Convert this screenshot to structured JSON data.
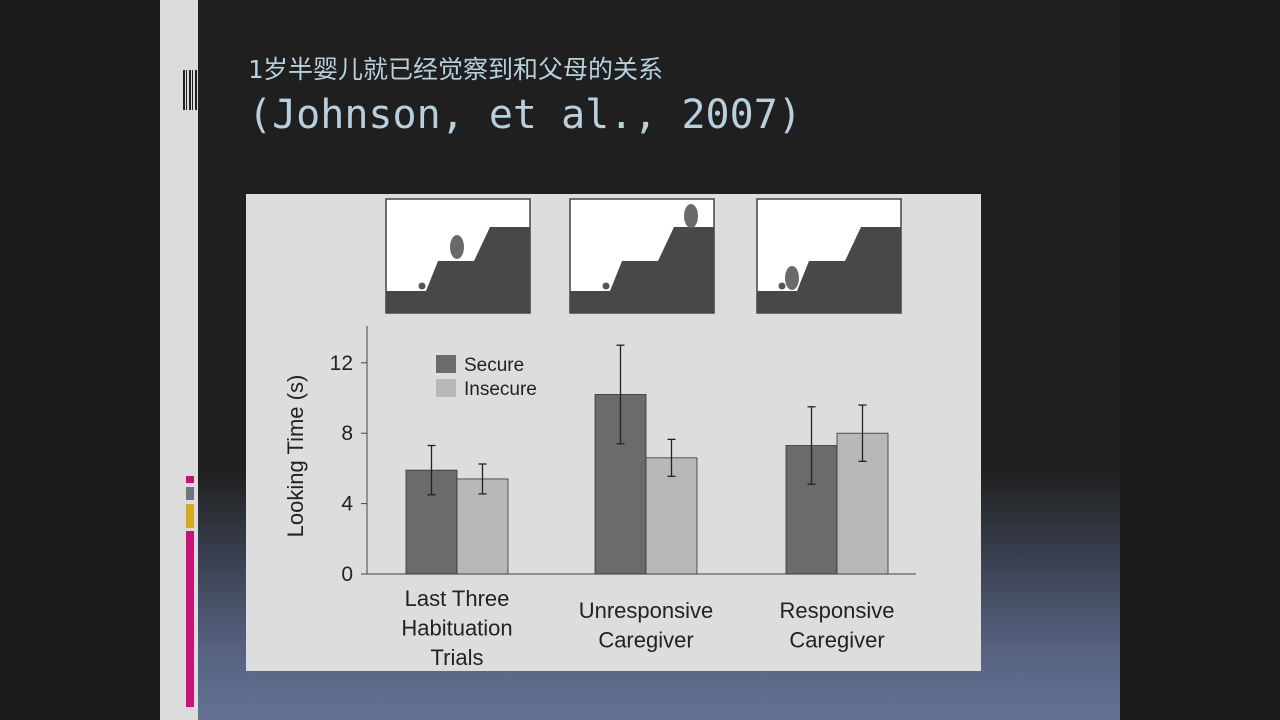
{
  "slide": {
    "title_line1": "1岁半婴儿就已经觉察到和父母的关系",
    "title_line2": "(Johnson, et al., 2007)"
  },
  "colors": {
    "accent_pink": "#c8127a",
    "accent_gray": "#6e7480",
    "accent_gold": "#d8a81e",
    "secure_bar": "#6b6b6b",
    "insecure_bar": "#b8b8b8"
  },
  "chart_data": {
    "type": "bar",
    "categories": [
      [
        "Last Three",
        "Habituation",
        "Trials"
      ],
      [
        "Unresponsive",
        "Caregiver"
      ],
      [
        "Responsive",
        "Caregiver"
      ]
    ],
    "series": [
      {
        "name": "Secure",
        "values": [
          5.9,
          10.2,
          7.3
        ],
        "error": [
          1.4,
          2.8,
          2.2
        ]
      },
      {
        "name": "Insecure",
        "values": [
          5.4,
          6.6,
          8.0
        ],
        "error": [
          0.85,
          1.05,
          1.6
        ]
      }
    ],
    "ylabel": "Looking Time (s)",
    "yticks": [
      0,
      4,
      8,
      12
    ],
    "ylim": [
      0,
      14
    ],
    "legend": "top-left",
    "grid": false
  }
}
